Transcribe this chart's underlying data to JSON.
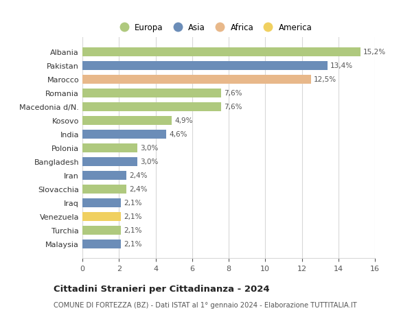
{
  "categories": [
    "Albania",
    "Pakistan",
    "Marocco",
    "Romania",
    "Macedonia d/N.",
    "Kosovo",
    "India",
    "Polonia",
    "Bangladesh",
    "Iran",
    "Slovacchia",
    "Iraq",
    "Venezuela",
    "Turchia",
    "Malaysia"
  ],
  "values": [
    15.2,
    13.4,
    12.5,
    7.6,
    7.6,
    4.9,
    4.6,
    3.0,
    3.0,
    2.4,
    2.4,
    2.1,
    2.1,
    2.1,
    2.1
  ],
  "labels": [
    "15,2%",
    "13,4%",
    "12,5%",
    "7,6%",
    "7,6%",
    "4,9%",
    "4,6%",
    "3,0%",
    "3,0%",
    "2,4%",
    "2,4%",
    "2,1%",
    "2,1%",
    "2,1%",
    "2,1%"
  ],
  "continents": [
    "Europa",
    "Asia",
    "Africa",
    "Europa",
    "Europa",
    "Europa",
    "Asia",
    "Europa",
    "Asia",
    "Asia",
    "Europa",
    "Asia",
    "America",
    "Europa",
    "Asia"
  ],
  "colors": {
    "Europa": "#afc97e",
    "Asia": "#6b8db8",
    "Africa": "#e8b88a",
    "America": "#f0d060"
  },
  "legend_order": [
    "Europa",
    "Asia",
    "Africa",
    "America"
  ],
  "title": "Cittadini Stranieri per Cittadinanza - 2024",
  "subtitle": "COMUNE DI FORTEZZA (BZ) - Dati ISTAT al 1° gennaio 2024 - Elaborazione TUTTITALIA.IT",
  "xlim": [
    0,
    16
  ],
  "xticks": [
    0,
    2,
    4,
    6,
    8,
    10,
    12,
    14,
    16
  ],
  "background_color": "#ffffff",
  "grid_color": "#d8d8d8"
}
